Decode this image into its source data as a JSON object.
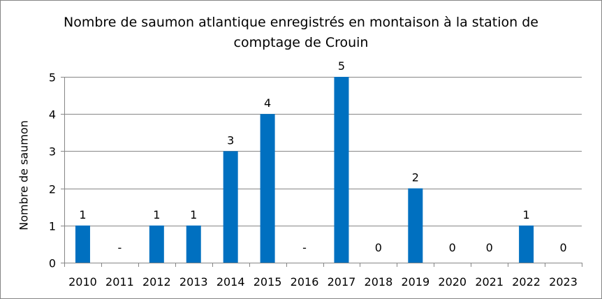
{
  "chart_data": {
    "type": "bar",
    "title": "Nombre de saumon atlantique enregistrés en montaison à la station de comptage de Crouin",
    "xlabel": "",
    "ylabel": "Nombre de saumon",
    "ylim": [
      0,
      5
    ],
    "yticks": [
      "0",
      "1",
      "2",
      "3",
      "4",
      "5"
    ],
    "grid": true,
    "categories": [
      "2010",
      "2011",
      "2012",
      "2013",
      "2014",
      "2015",
      "2016",
      "2017",
      "2018",
      "2019",
      "2020",
      "2021",
      "2022",
      "2023"
    ],
    "values": [
      1,
      null,
      1,
      1,
      3,
      4,
      null,
      5,
      0,
      2,
      0,
      0,
      1,
      0
    ],
    "data_labels": [
      "1",
      "-",
      "1",
      "1",
      "3",
      "4",
      "-",
      "5",
      "0",
      "2",
      "0",
      "0",
      "1",
      "0"
    ],
    "bar_color": "#0070C0"
  }
}
